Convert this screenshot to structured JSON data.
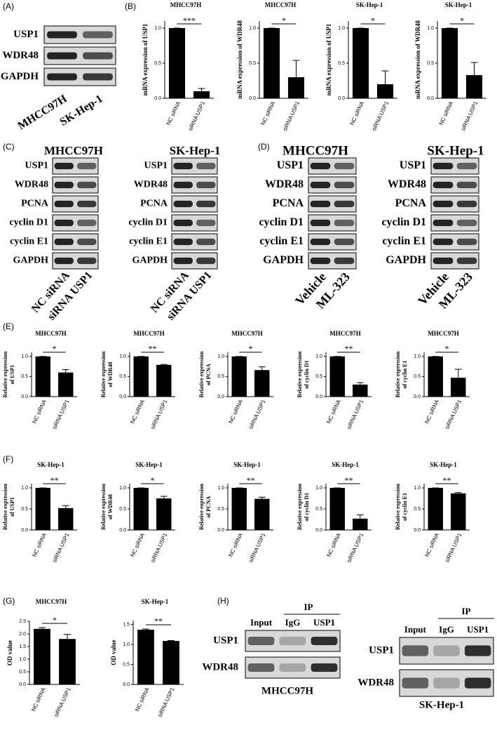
{
  "panel_labels": [
    "(A)",
    "(B)",
    "(C)",
    "(D)",
    "(E)",
    "(F)",
    "(G)",
    "(H)"
  ],
  "blots": [
    {
      "rows": [
        "USP1",
        "WDR48",
        "GAPDH"
      ],
      "lanes": [
        "MHCC97H",
        "SK-Hep-1"
      ]
    },
    {
      "title": "MHCC97H",
      "rows": [
        "USP1",
        "WDR48",
        "PCNA",
        "cyclin D1",
        "cyclin E1",
        "GAPDH"
      ],
      "lanes": [
        "NC siRNA",
        "siRNA USP1"
      ]
    },
    {
      "title": "SK-Hep-1",
      "rows": [
        "USP1",
        "WDR48",
        "PCNA",
        "cyclin D1",
        "cyclin E1",
        "GAPDH"
      ],
      "lanes": [
        "NC siRNA",
        "siRNA USP1"
      ]
    },
    {
      "title": "MHCC97H",
      "rows": [
        "USP1",
        "WDR48",
        "PCNA",
        "cyclin D1",
        "cyclin E1",
        "GAPDH"
      ],
      "lanes": [
        "Vehicle",
        "ML-323"
      ]
    },
    {
      "title": "SK-Hep-1",
      "rows": [
        "USP1",
        "WDR48",
        "PCNA",
        "cyclin D1",
        "cyclin E1",
        "GAPDH"
      ],
      "lanes": [
        "Vehicle",
        "ML-323"
      ]
    },
    {
      "ip": "IP",
      "headers": [
        "Input",
        "IgG",
        "USP1"
      ],
      "rows": [
        "USP1",
        "WDR48"
      ],
      "cell_line": "MHCC97H"
    },
    {
      "ip": "IP",
      "headers": [
        "Input",
        "IgG",
        "USP1"
      ],
      "rows": [
        "USP1",
        "WDR48"
      ],
      "cell_line": "SK-Hep-1"
    }
  ],
  "chart_data": [
    {
      "type": "bar",
      "title": "MHCC97H",
      "ylabel": [
        "mRNA expression of USP1"
      ],
      "categories": [
        "NC siRNA",
        "siRNA USP1"
      ],
      "values": [
        1.0,
        0.1
      ],
      "errors": [
        0,
        0.04
      ],
      "significance": "***",
      "color": "#000000",
      "ylim": [
        0,
        1.1
      ],
      "yticks": [
        {
          "value": 0,
          "label": "0.0"
        },
        {
          "value": 0.5,
          "label": "0.5"
        },
        {
          "value": 1,
          "label": "1.0"
        }
      ]
    },
    {
      "type": "bar",
      "title": "MHCC97H",
      "ylabel": [
        "mRNA expression of WDR48"
      ],
      "categories": [
        "NC siRNA",
        "siRNA USP1"
      ],
      "values": [
        1.0,
        0.3
      ],
      "errors": [
        0,
        0.24
      ],
      "significance": "*",
      "color": "#000000",
      "ylim": [
        0,
        1.1
      ],
      "yticks": [
        {
          "value": 0,
          "label": "0.0"
        },
        {
          "value": 0.5,
          "label": "0.5"
        },
        {
          "value": 1,
          "label": "1.0"
        }
      ]
    },
    {
      "type": "bar",
      "title": "SK-Hep-1",
      "ylabel": [
        "mRNA expression of USP1"
      ],
      "categories": [
        "NC siRNA",
        "siRNA USP1"
      ],
      "values": [
        1.0,
        0.2
      ],
      "errors": [
        0,
        0.19
      ],
      "significance": "*",
      "color": "#000000",
      "ylim": [
        0,
        1.1
      ],
      "yticks": [
        {
          "value": 0,
          "label": "0.0"
        },
        {
          "value": 0.5,
          "label": "0.5"
        },
        {
          "value": 1,
          "label": "1.0"
        }
      ]
    },
    {
      "type": "bar",
      "title": "SK-Hep-1",
      "ylabel": [
        "mRNA expression of WDR48"
      ],
      "categories": [
        "NC siRNA",
        "siRNA USP1"
      ],
      "values": [
        1.0,
        0.33
      ],
      "errors": [
        0,
        0.18
      ],
      "significance": "*",
      "color": "#000000",
      "ylim": [
        0,
        1.1
      ],
      "yticks": [
        {
          "value": 0,
          "label": "0.0"
        },
        {
          "value": 0.5,
          "label": "0.5"
        },
        {
          "value": 1,
          "label": "1.0"
        }
      ]
    },
    {
      "type": "bar",
      "title": "MHCC97H",
      "ylabel": [
        "Relative expression",
        "of USP1"
      ],
      "categories": [
        "NC siRNA",
        "siRNA USP1"
      ],
      "values": [
        1.0,
        0.6
      ],
      "errors": [
        0,
        0.07
      ],
      "significance": "*",
      "color": "#000000",
      "ylim": [
        0,
        1.1
      ],
      "yticks": [
        {
          "value": 0,
          "label": "0.0"
        },
        {
          "value": 0.5,
          "label": "0.5"
        },
        {
          "value": 1,
          "label": "1.0"
        }
      ]
    },
    {
      "type": "bar",
      "title": "MHCC97H",
      "ylabel": [
        "Relative expression",
        "of WDR48"
      ],
      "categories": [
        "NC siRNA",
        "siRNA USP1"
      ],
      "values": [
        1.0,
        0.79
      ],
      "errors": [
        0,
        0.01
      ],
      "significance": "**",
      "color": "#000000",
      "ylim": [
        0,
        1.1
      ],
      "yticks": [
        {
          "value": 0,
          "label": "0.0"
        },
        {
          "value": 0.5,
          "label": "0.5"
        },
        {
          "value": 1,
          "label": "1.0"
        }
      ]
    },
    {
      "type": "bar",
      "title": "MHCC97H",
      "ylabel": [
        "Relative expression",
        "of PCNA"
      ],
      "categories": [
        "NC siRNA",
        "siRNA USP1"
      ],
      "values": [
        1.0,
        0.66
      ],
      "errors": [
        0,
        0.08
      ],
      "significance": "*",
      "color": "#000000",
      "ylim": [
        0,
        1.1
      ],
      "yticks": [
        {
          "value": 0,
          "label": "0.0"
        },
        {
          "value": 0.5,
          "label": "0.5"
        },
        {
          "value": 1,
          "label": "1.0"
        }
      ]
    },
    {
      "type": "bar",
      "title": "MHCC97H",
      "ylabel": [
        "Relative expression",
        "of cyclin D1"
      ],
      "categories": [
        "NC siRNA",
        "siRNA USP1"
      ],
      "values": [
        1.0,
        0.3
      ],
      "errors": [
        0,
        0.05
      ],
      "significance": "**",
      "color": "#000000",
      "ylim": [
        0,
        1.1
      ],
      "yticks": [
        {
          "value": 0,
          "label": "0.0"
        },
        {
          "value": 0.5,
          "label": "0.5"
        },
        {
          "value": 1,
          "label": "1.0"
        }
      ]
    },
    {
      "type": "bar",
      "title": "MHCC97H",
      "ylabel": [
        "Relative expression",
        "of cyclin E1"
      ],
      "categories": [
        "NC siRNA",
        "siRNA USP1"
      ],
      "values": [
        1.0,
        0.47
      ],
      "errors": [
        0,
        0.21
      ],
      "significance": "*",
      "color": "#000000",
      "ylim": [
        0,
        1.1
      ],
      "yticks": [
        {
          "value": 0,
          "label": "0.0"
        },
        {
          "value": 0.5,
          "label": "0.5"
        },
        {
          "value": 1,
          "label": "1.0"
        }
      ]
    },
    {
      "type": "bar",
      "title": "SK-Hep-1",
      "ylabel": [
        "Relative expression",
        "of USP1"
      ],
      "categories": [
        "NC siRNA",
        "siRNA USP1"
      ],
      "values": [
        1.0,
        0.52
      ],
      "errors": [
        0,
        0.06
      ],
      "significance": "**",
      "color": "#000000",
      "ylim": [
        0,
        1.1
      ],
      "yticks": [
        {
          "value": 0,
          "label": "0.0"
        },
        {
          "value": 0.5,
          "label": "0.5"
        },
        {
          "value": 1,
          "label": "1.0"
        }
      ]
    },
    {
      "type": "bar",
      "title": "SK-Hep-1",
      "ylabel": [
        "Relative expression",
        "of WDR48"
      ],
      "categories": [
        "NC siRNA",
        "siRNA USP1"
      ],
      "values": [
        1.0,
        0.75
      ],
      "errors": [
        0,
        0.05
      ],
      "significance": "*",
      "color": "#000000",
      "ylim": [
        0,
        1.1
      ],
      "yticks": [
        {
          "value": 0,
          "label": "0.0"
        },
        {
          "value": 0.5,
          "label": "0.5"
        },
        {
          "value": 1,
          "label": "1.0"
        }
      ]
    },
    {
      "type": "bar",
      "title": "SK-Hep-1",
      "ylabel": [
        "Relative expression",
        "of PCNA"
      ],
      "categories": [
        "NC siRNA",
        "siRNA USP1"
      ],
      "values": [
        1.0,
        0.74
      ],
      "errors": [
        0,
        0.04
      ],
      "significance": "**",
      "color": "#000000",
      "ylim": [
        0,
        1.1
      ],
      "yticks": [
        {
          "value": 0,
          "label": "0.0"
        },
        {
          "value": 0.5,
          "label": "0.5"
        },
        {
          "value": 1,
          "label": "1.0"
        }
      ]
    },
    {
      "type": "bar",
      "title": "SK-Hep-1",
      "ylabel": [
        "Relative expression",
        "of cyclin D1"
      ],
      "categories": [
        "NC siRNA",
        "siRNA USP1"
      ],
      "values": [
        1.0,
        0.27
      ],
      "errors": [
        0,
        0.09
      ],
      "significance": "**",
      "color": "#000000",
      "ylim": [
        0,
        1.1
      ],
      "yticks": [
        {
          "value": 0,
          "label": "0.0"
        },
        {
          "value": 0.5,
          "label": "0.5"
        },
        {
          "value": 1,
          "label": "1.0"
        }
      ]
    },
    {
      "type": "bar",
      "title": "SK-Hep-1",
      "ylabel": [
        "Relative expression",
        "of cyclin E1"
      ],
      "categories": [
        "NC siRNA",
        "siRNA USP1"
      ],
      "values": [
        1.0,
        0.87
      ],
      "errors": [
        0,
        0.02
      ],
      "significance": "**",
      "color": "#000000",
      "ylim": [
        0,
        1.1
      ],
      "yticks": [
        {
          "value": 0,
          "label": "0.0"
        },
        {
          "value": 0.5,
          "label": "0.5"
        },
        {
          "value": 1,
          "label": "1.0"
        }
      ]
    },
    {
      "type": "bar",
      "title": "MHCC97H",
      "ylabel": [
        "OD value"
      ],
      "categories": [
        "NC siRNA",
        "siRNA USP1"
      ],
      "values": [
        2.2,
        1.8
      ],
      "errors": [
        0.05,
        0.18
      ],
      "significance": "*",
      "color": "#000000",
      "ylim": [
        0,
        2.5
      ],
      "yticks": [
        {
          "value": 0,
          "label": "0.0"
        },
        {
          "value": 0.5,
          "label": "0.5"
        },
        {
          "value": 1,
          "label": "1.0"
        },
        {
          "value": 1.5,
          "label": "1.5"
        },
        {
          "value": 2,
          "label": "2.0"
        },
        {
          "value": 2.5,
          "label": "2.5"
        }
      ]
    },
    {
      "type": "bar",
      "title": "SK-Hep-1",
      "ylabel": [
        "OD value"
      ],
      "categories": [
        "NC siRNA",
        "siRNA USP1"
      ],
      "values": [
        1.37,
        1.09
      ],
      "errors": [
        0.02,
        0.01
      ],
      "significance": "**",
      "color": "#000000",
      "ylim": [
        0,
        1.6
      ],
      "yticks": [
        {
          "value": 0,
          "label": "0.0"
        },
        {
          "value": 0.5,
          "label": "0.5"
        },
        {
          "value": 1,
          "label": "1.0"
        },
        {
          "value": 1.5,
          "label": "1.5"
        }
      ]
    }
  ]
}
